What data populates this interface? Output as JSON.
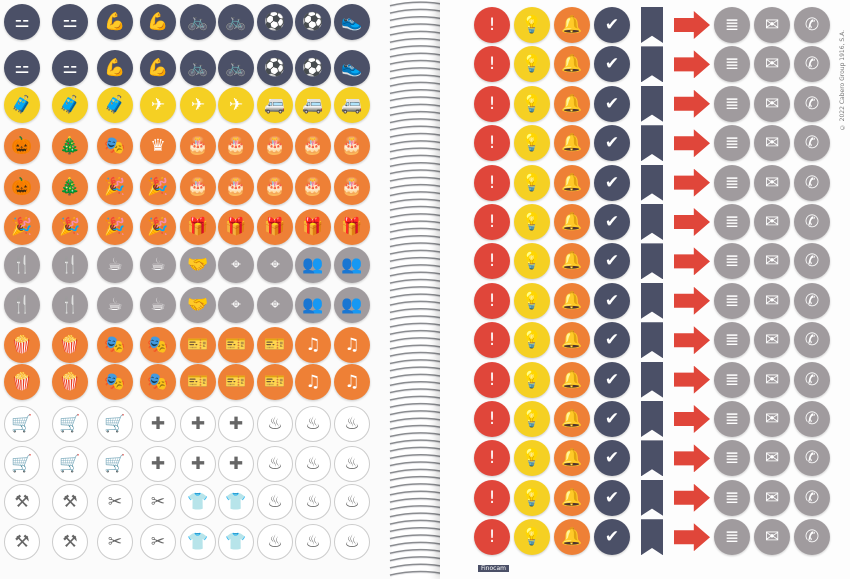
{
  "colors": {
    "dark": "#4b5067",
    "yellow": "#f5d023",
    "orange": "#ee8036",
    "gray": "#a09b9e",
    "red": "#e0463a"
  },
  "left_rows": [
    {
      "color": "dark",
      "icons": [
        "dumbbell",
        "dumbbell",
        "muscle",
        "muscle",
        "bicycle",
        "bicycle",
        "ball",
        "ball",
        "shoe"
      ]
    },
    {
      "color": "dark",
      "icons": [
        "dumbbell",
        "dumbbell",
        "muscle",
        "muscle",
        "bicycle",
        "bicycle",
        "ball",
        "ball",
        "shoe"
      ]
    },
    {
      "color": "yellow",
      "icons": [
        "suitcase",
        "suitcase",
        "suitcase",
        "plane",
        "plane",
        "plane",
        "van",
        "van",
        "van"
      ]
    },
    {
      "color": "orange",
      "icons": [
        "pumpkin",
        "tree",
        "mask",
        "crown",
        "cake",
        "cake",
        "cake",
        "cake",
        "cake"
      ]
    },
    {
      "color": "orange",
      "icons": [
        "pumpkin",
        "tree",
        "confetti",
        "confetti",
        "cake",
        "cake",
        "cake",
        "cake",
        "cake"
      ]
    },
    {
      "color": "orange",
      "icons": [
        "confetti",
        "confetti",
        "confetti",
        "confetti",
        "gift",
        "gift",
        "gift",
        "gift",
        "gift"
      ]
    },
    {
      "color": "gray",
      "icons": [
        "cutlery",
        "cutlery",
        "coffee",
        "coffee",
        "handshake",
        "location",
        "location",
        "group",
        "group"
      ]
    },
    {
      "color": "gray",
      "icons": [
        "cutlery",
        "cutlery",
        "coffee",
        "coffee",
        "handshake",
        "location",
        "location",
        "group",
        "group"
      ]
    },
    {
      "color": "orange",
      "icons": [
        "popcorn",
        "popcorn",
        "theater",
        "theater",
        "ticket",
        "ticket",
        "ticket",
        "music",
        "music"
      ]
    },
    {
      "color": "orange",
      "icons": [
        "popcorn",
        "popcorn",
        "theater",
        "theater",
        "ticket",
        "ticket",
        "ticket",
        "music",
        "music"
      ]
    },
    {
      "color": "outline",
      "icons": [
        "cart",
        "cart",
        "cart",
        "cross",
        "cross",
        "cross",
        "pot",
        "pot",
        "pot"
      ]
    },
    {
      "color": "outline",
      "icons": [
        "cart",
        "cart",
        "cart",
        "cross",
        "cross",
        "cross",
        "pot",
        "pot",
        "pot"
      ]
    },
    {
      "color": "outline",
      "icons": [
        "tools",
        "tools",
        "scissors",
        "scissors",
        "laundry",
        "laundry",
        "pot",
        "pot",
        "pot"
      ]
    },
    {
      "color": "outline",
      "icons": [
        "tools",
        "tools",
        "scissors",
        "scissors",
        "laundry",
        "laundry",
        "pot",
        "pot",
        "pot"
      ]
    }
  ],
  "right_columns": [
    {
      "color": "red",
      "icon": "exclamation"
    },
    {
      "color": "yellow",
      "icon": "lightbulb"
    },
    {
      "color": "orange",
      "icon": "bell"
    },
    {
      "color": "dark",
      "icon": "check"
    },
    {
      "color": "dark",
      "icon": "ribbon"
    },
    {
      "color": "red",
      "icon": "arrow"
    },
    {
      "color": "gray",
      "icon": "document"
    },
    {
      "color": "gray",
      "icon": "envelope"
    },
    {
      "color": "gray",
      "icon": "phone"
    }
  ],
  "glyphs": {
    "dumbbell": "⚍",
    "muscle": "💪",
    "bicycle": "🚲",
    "ball": "⚽",
    "shoe": "👟",
    "suitcase": "🧳",
    "plane": "✈",
    "van": "🚐",
    "pumpkin": "🎃",
    "tree": "🎄",
    "mask": "🎭",
    "crown": "♛",
    "cake": "🎂",
    "confetti": "🎉",
    "gift": "🎁",
    "cutlery": "🍴",
    "coffee": "☕",
    "handshake": "🤝",
    "location": "⌖",
    "group": "👥",
    "popcorn": "🍿",
    "theater": "🎭",
    "ticket": "🎫",
    "music": "♫",
    "cart": "🛒",
    "cross": "✚",
    "pot": "♨",
    "tools": "⚒",
    "scissors": "✂",
    "laundry": "👕",
    "exclamation": "!",
    "lightbulb": "💡",
    "bell": "🔔",
    "check": "✔",
    "document": "≣",
    "envelope": "✉",
    "phone": "✆"
  },
  "copyright": "© 2022 Cabero Group 1916, S.A.",
  "brand": "Finocam"
}
